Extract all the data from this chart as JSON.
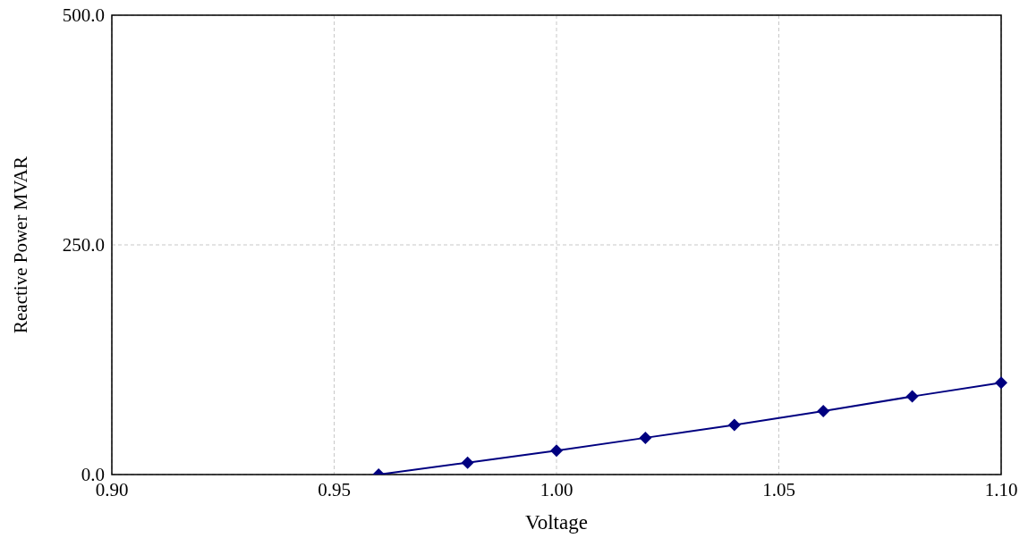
{
  "chart_data": {
    "type": "line",
    "xlabel": "Voltage",
    "ylabel": "Reactive Power MVAR",
    "xlim": [
      0.9,
      1.1
    ],
    "ylim": [
      0,
      500
    ],
    "xticks": [
      {
        "value": 0.9,
        "label": "0.90"
      },
      {
        "value": 0.95,
        "label": "0.95"
      },
      {
        "value": 1.0,
        "label": "1.00"
      },
      {
        "value": 1.05,
        "label": "1.05"
      },
      {
        "value": 1.1,
        "label": "1.10"
      }
    ],
    "yticks": [
      {
        "value": 0,
        "label": "0.0"
      },
      {
        "value": 250,
        "label": "250.0"
      },
      {
        "value": 500,
        "label": "500.0"
      }
    ],
    "x": [
      0.96,
      0.98,
      1.0,
      1.02,
      1.04,
      1.06,
      1.08,
      1.1
    ],
    "series": [
      {
        "color": "#000080",
        "values": [
          0,
          13,
          26,
          40,
          54,
          69,
          85,
          100
        ]
      }
    ],
    "grid": true,
    "marker": "diamond",
    "line_style": "solid"
  }
}
